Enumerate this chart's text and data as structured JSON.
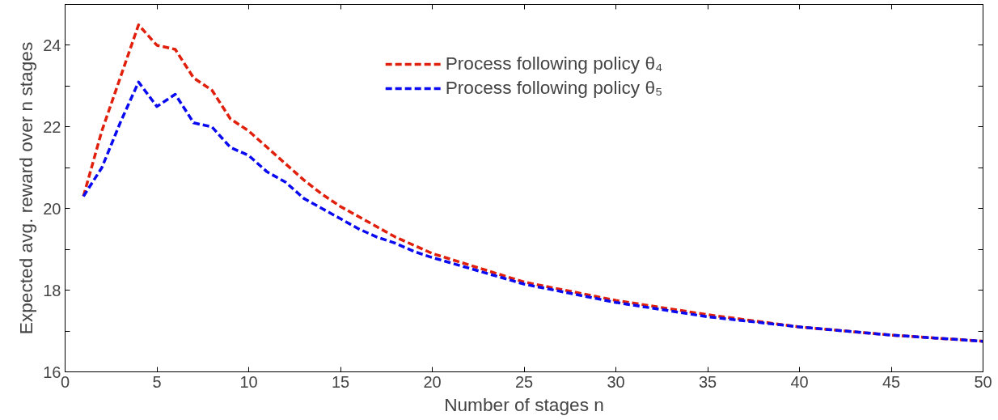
{
  "chart_data": {
    "type": "line",
    "xlabel": "Number of stages n",
    "ylabel": "Expected avg. reward over n stages",
    "x": [
      1,
      2,
      3,
      4,
      5,
      6,
      7,
      8,
      9,
      10,
      11,
      12,
      13,
      14,
      15,
      16,
      17,
      18,
      19,
      20,
      25,
      30,
      35,
      40,
      45,
      50
    ],
    "series": [
      {
        "name": "Process following policy θ₄",
        "color": "#e0200c",
        "values": [
          20.3,
          21.9,
          23.2,
          24.5,
          24.0,
          23.9,
          23.2,
          22.9,
          22.2,
          21.9,
          21.5,
          21.1,
          20.7,
          20.35,
          20.05,
          19.8,
          19.55,
          19.3,
          19.1,
          18.9,
          18.2,
          17.75,
          17.4,
          17.1,
          16.9,
          16.75
        ]
      },
      {
        "name": "Process following policy θ₅",
        "color": "#0a0af0",
        "values": [
          20.3,
          21.0,
          22.1,
          23.1,
          22.5,
          22.8,
          22.1,
          22.0,
          21.5,
          21.3,
          20.9,
          20.65,
          20.25,
          20.0,
          19.75,
          19.5,
          19.3,
          19.15,
          18.95,
          18.8,
          18.15,
          17.7,
          17.35,
          17.1,
          16.9,
          16.75
        ]
      }
    ],
    "xlim": [
      0,
      50
    ],
    "xticks": [
      0,
      5,
      10,
      15,
      20,
      25,
      30,
      35,
      40,
      45,
      50
    ],
    "ylim": [
      16,
      25
    ],
    "yticks": [
      16,
      {
        "value": 17,
        "label": null
      },
      18,
      {
        "value": 19,
        "label": null
      },
      20,
      {
        "value": 21,
        "label": null
      },
      22,
      {
        "value": 23,
        "label": null
      },
      24,
      {
        "value": 25,
        "label": null
      }
    ],
    "line_style": "dashed",
    "grid": false,
    "legend": "top"
  }
}
